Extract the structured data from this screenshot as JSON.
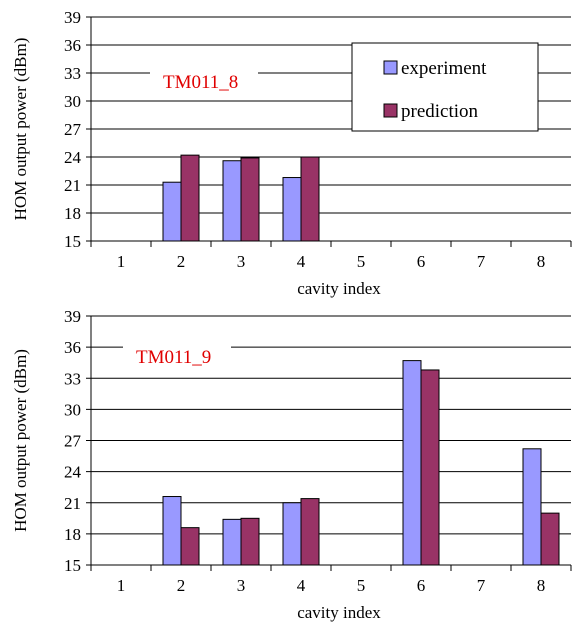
{
  "colors": {
    "experiment": "#9999ff",
    "prediction": "#993366",
    "annotation": "#e00000",
    "grid": "#000000"
  },
  "legend": {
    "experiment": "experiment",
    "prediction": "prediction",
    "placement": "top-right of first chart"
  },
  "chart_data": [
    {
      "type": "bar",
      "annotation": "TM011_8",
      "categories": [
        "1",
        "2",
        "3",
        "4",
        "5",
        "6",
        "7",
        "8"
      ],
      "xlabel": "cavity index",
      "ylabel": "HOM output power (dBm)",
      "ylim": [
        15,
        39
      ],
      "yticks": [
        15,
        18,
        21,
        24,
        27,
        30,
        33,
        36,
        39
      ],
      "grid": true,
      "series": [
        {
          "name": "experiment",
          "values": [
            null,
            21.3,
            23.6,
            21.8,
            null,
            null,
            null,
            null
          ]
        },
        {
          "name": "prediction",
          "values": [
            null,
            24.2,
            23.9,
            24.0,
            null,
            null,
            null,
            null
          ]
        }
      ]
    },
    {
      "type": "bar",
      "annotation": "TM011_9",
      "categories": [
        "1",
        "2",
        "3",
        "4",
        "5",
        "6",
        "7",
        "8"
      ],
      "xlabel": "cavity index",
      "ylabel": "HOM output power (dBm)",
      "ylim": [
        15,
        39
      ],
      "yticks": [
        15,
        18,
        21,
        24,
        27,
        30,
        33,
        36,
        39
      ],
      "grid": true,
      "series": [
        {
          "name": "experiment",
          "values": [
            null,
            21.6,
            19.4,
            21.0,
            null,
            34.7,
            null,
            26.2
          ]
        },
        {
          "name": "prediction",
          "values": [
            null,
            18.6,
            19.5,
            21.4,
            null,
            33.8,
            null,
            20.0
          ]
        }
      ]
    }
  ]
}
